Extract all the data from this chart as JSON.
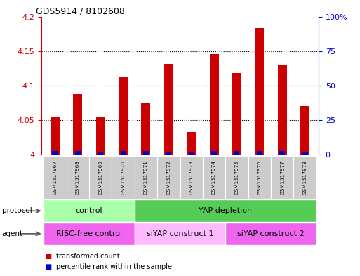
{
  "title": "GDS5914 / 8102608",
  "samples": [
    "GSM1517967",
    "GSM1517968",
    "GSM1517969",
    "GSM1517970",
    "GSM1517971",
    "GSM1517972",
    "GSM1517973",
    "GSM1517974",
    "GSM1517975",
    "GSM1517976",
    "GSM1517977",
    "GSM1517978"
  ],
  "red_values": [
    4.054,
    4.088,
    4.055,
    4.112,
    4.074,
    4.131,
    4.033,
    4.146,
    4.118,
    4.183,
    4.13,
    4.07
  ],
  "blue_pct": [
    2.5,
    2.5,
    1.5,
    2.5,
    2.5,
    2.0,
    1.5,
    2.5,
    2.5,
    2.5,
    2.5,
    2.0
  ],
  "ylim_left": [
    4.0,
    4.2
  ],
  "ylim_right": [
    0,
    100
  ],
  "yticks_left": [
    4.0,
    4.05,
    4.1,
    4.15,
    4.2
  ],
  "yticks_right": [
    0,
    25,
    50,
    75,
    100
  ],
  "ytick_labels_left": [
    "4",
    "4.05",
    "4.1",
    "4.15",
    "4.2"
  ],
  "ytick_labels_right": [
    "0",
    "25",
    "50",
    "75",
    "100%"
  ],
  "left_color": "#cc0000",
  "right_color": "#0000cc",
  "bar_color_red": "#cc0000",
  "bar_color_blue": "#0000cc",
  "protocol_groups": [
    {
      "label": "control",
      "start": 0,
      "end": 3,
      "color": "#aaffaa"
    },
    {
      "label": "YAP depletion",
      "start": 4,
      "end": 11,
      "color": "#55cc55"
    }
  ],
  "agent_groups": [
    {
      "label": "RISC-free control",
      "start": 0,
      "end": 3,
      "color": "#ee66ee"
    },
    {
      "label": "siYAP construct 1",
      "start": 4,
      "end": 7,
      "color": "#ffbbff"
    },
    {
      "label": "siYAP construct 2",
      "start": 8,
      "end": 11,
      "color": "#ee66ee"
    }
  ],
  "legend_items": [
    {
      "label": "transformed count",
      "color": "#cc0000"
    },
    {
      "label": "percentile rank within the sample",
      "color": "#0000cc"
    }
  ],
  "tick_bg_color": "#cccccc",
  "base": 4.0,
  "red_bar_width": 0.4,
  "blue_bar_width": 0.25
}
